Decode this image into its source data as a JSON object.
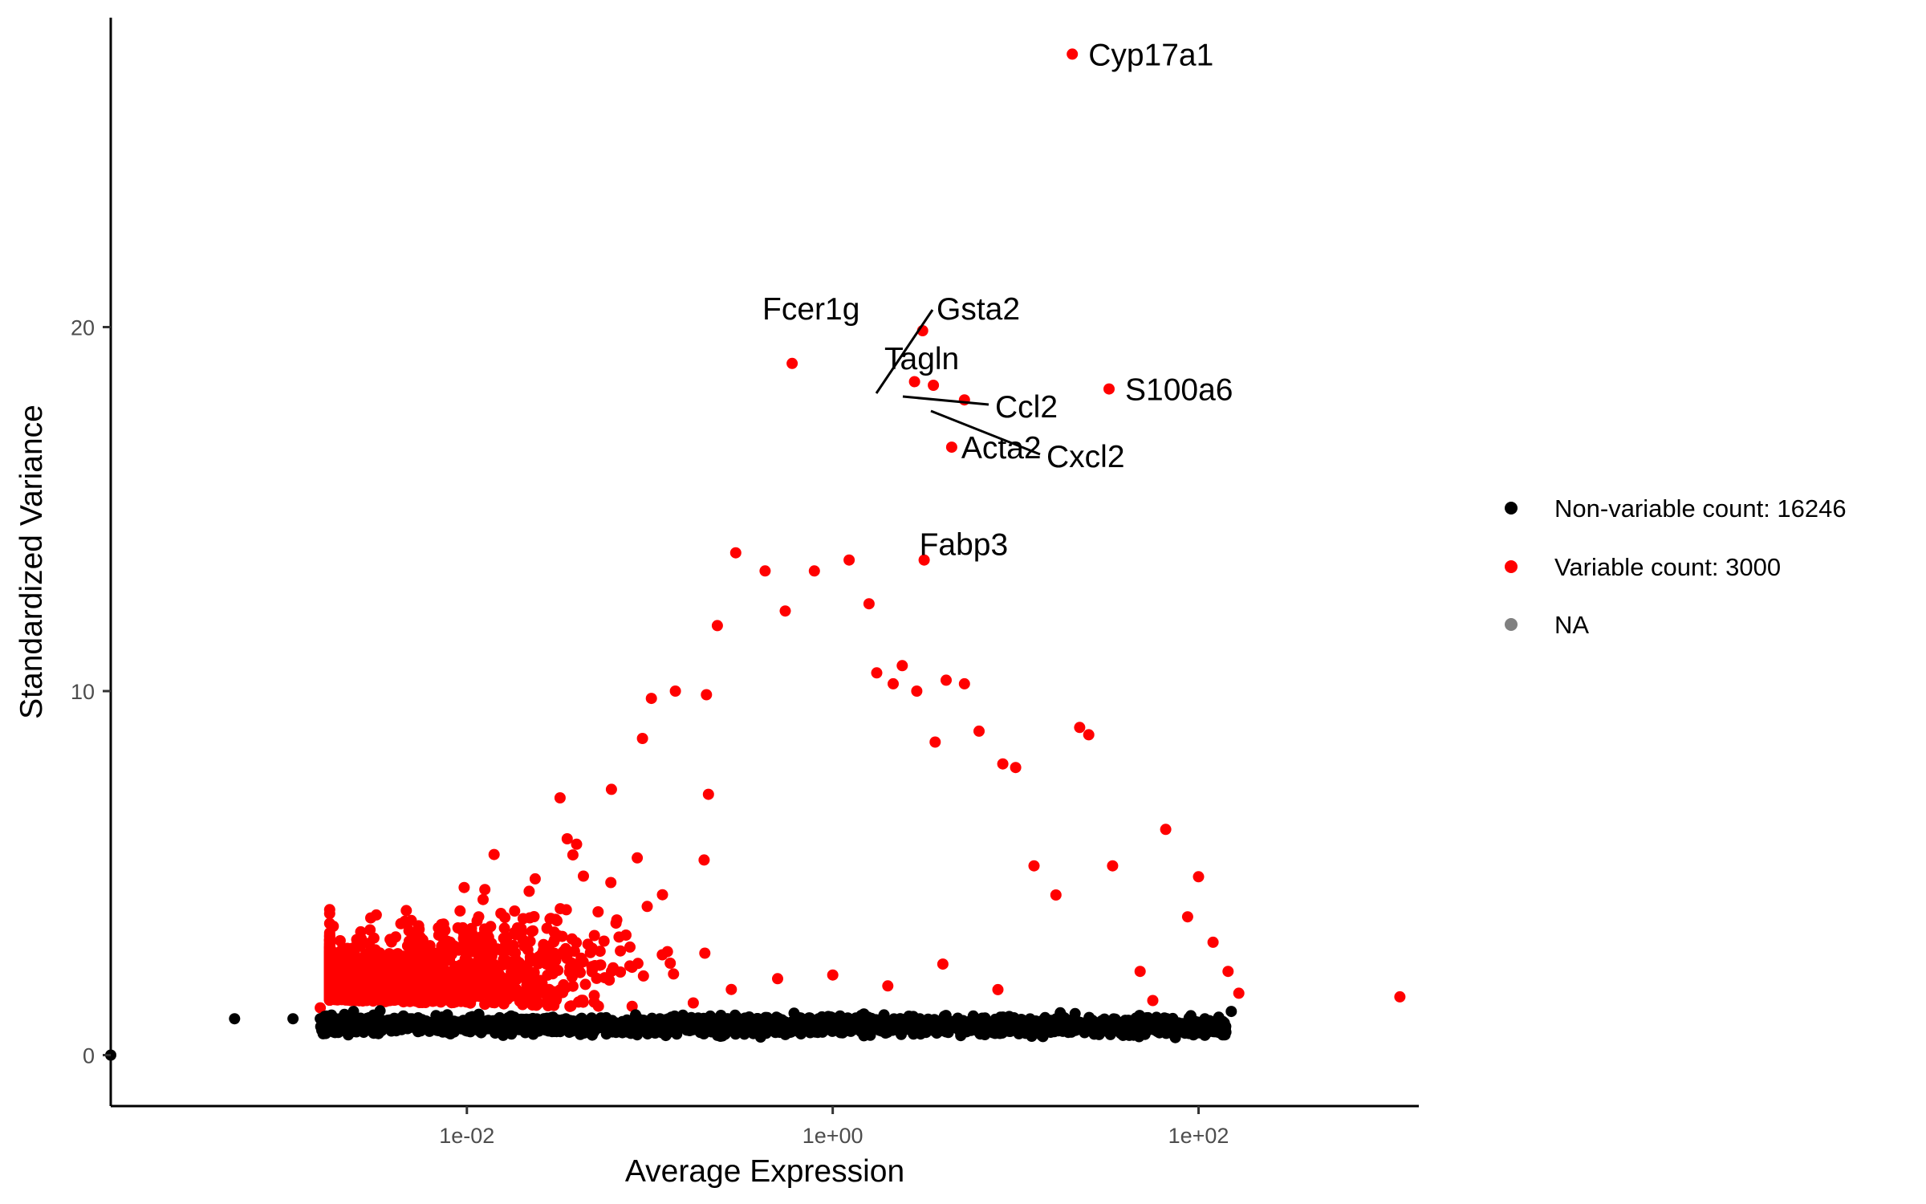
{
  "chart_data": {
    "type": "scatter",
    "title": "",
    "xlabel": "Average Expression",
    "ylabel": "Standardized Variance",
    "xscale": "log10",
    "xlim": [
      0.000113,
      1600
    ],
    "ylim": [
      -1.4,
      28.5
    ],
    "xticks": [
      {
        "value": 0.01,
        "label": "1e-02"
      },
      {
        "value": 1,
        "label": "1e+00"
      },
      {
        "value": 100,
        "label": "1e+02"
      }
    ],
    "yticks": [
      {
        "value": 0,
        "label": "0"
      },
      {
        "value": 10,
        "label": "10"
      },
      {
        "value": 20,
        "label": "20"
      }
    ],
    "grid": false,
    "legend_position": "right",
    "series": [
      {
        "name": "Non-variable count: 16246",
        "color": "#000000",
        "count": 16246,
        "representative_points": [
          [
            0.000113,
            0.0
          ],
          [
            0.000537,
            1.0
          ],
          [
            0.00112,
            1.0
          ],
          [
            0.00158,
            1.0
          ],
          [
            0.00182,
            1.1
          ],
          [
            0.00191,
            0.95
          ],
          [
            0.0024,
            1.2
          ],
          [
            0.00309,
            1.1
          ],
          [
            0.005,
            1.0
          ],
          [
            0.0089,
            0.9
          ],
          [
            0.0151,
            0.85
          ],
          [
            0.0269,
            0.95
          ],
          [
            0.0427,
            0.85
          ],
          [
            0.0741,
            0.9
          ],
          [
            0.135,
            0.85
          ],
          [
            0.257,
            0.9
          ],
          [
            0.468,
            0.95
          ],
          [
            0.832,
            0.85
          ],
          [
            1.62,
            0.8
          ],
          [
            2.88,
            0.9
          ],
          [
            5.5,
            0.75
          ],
          [
            9.33,
            0.65
          ],
          [
            15.8,
            0.7
          ],
          [
            27.5,
            0.6
          ],
          [
            47.9,
            0.85
          ],
          [
            70.8,
            0.7
          ],
          [
            112,
            0.8
          ],
          [
            135,
            0.7
          ],
          [
            151,
            1.2
          ]
        ]
      },
      {
        "name": "Variable count: 3000",
        "color": "#ff0000",
        "count": 3000,
        "representative_points": [
          [
            0.00158,
            1.3
          ],
          [
            0.0024,
            1.8
          ],
          [
            0.0038,
            1.5
          ],
          [
            0.005,
            2.2
          ],
          [
            0.0085,
            3.0
          ],
          [
            0.0126,
            3.2
          ],
          [
            0.0219,
            4.5
          ],
          [
            0.038,
            5.5
          ],
          [
            0.0617,
            7.3
          ],
          [
            0.0912,
            8.7
          ],
          [
            0.102,
            9.8
          ],
          [
            0.138,
            10.0
          ],
          [
            0.204,
            9.9
          ],
          [
            0.234,
            11.8
          ],
          [
            0.295,
            13.8
          ],
          [
            0.427,
            13.3
          ],
          [
            0.55,
            12.2
          ],
          [
            0.794,
            13.3
          ],
          [
            1.23,
            13.6
          ],
          [
            1.58,
            12.4
          ],
          [
            1.74,
            10.5
          ],
          [
            2.14,
            10.2
          ],
          [
            2.4,
            10.7
          ],
          [
            2.88,
            10.0
          ],
          [
            3.63,
            8.6
          ],
          [
            4.17,
            10.3
          ],
          [
            5.25,
            10.2
          ],
          [
            6.31,
            8.9
          ],
          [
            8.51,
            8.0
          ],
          [
            10.0,
            7.9
          ],
          [
            12.6,
            5.2
          ],
          [
            16.6,
            4.4
          ],
          [
            22.4,
            9.0
          ],
          [
            25.1,
            8.8
          ],
          [
            33.9,
            5.2
          ],
          [
            47.9,
            2.3
          ],
          [
            56.2,
            1.5
          ],
          [
            66.1,
            6.2
          ],
          [
            87.1,
            3.8
          ],
          [
            100,
            4.9
          ],
          [
            120,
            3.1
          ],
          [
            145,
            2.3
          ],
          [
            166,
            1.7
          ],
          [
            1260,
            1.6
          ],
          [
            0.0275,
            1.6
          ],
          [
            0.063,
            2.4
          ],
          [
            0.2,
            2.8
          ],
          [
            0.5,
            2.1
          ],
          [
            1.0,
            2.2
          ],
          [
            2.0,
            1.9
          ],
          [
            4.0,
            2.5
          ],
          [
            8.0,
            1.8
          ]
        ]
      },
      {
        "name": "NA",
        "color": "#808080",
        "count": 0,
        "representative_points": []
      }
    ],
    "labeled_genes": [
      {
        "gene": "Cyp17a1",
        "x": 20.4,
        "y": 27.5
      },
      {
        "gene": "Gsta2",
        "x": 2.8,
        "y": 18.5
      },
      {
        "gene": "Fcer1g",
        "x": 0.6,
        "y": 19.0
      },
      {
        "gene": "Tagln",
        "x": 3.1,
        "y": 19.9
      },
      {
        "gene": "Ccl2",
        "x": 3.55,
        "y": 18.4
      },
      {
        "gene": "S100a6",
        "x": 32.4,
        "y": 18.3
      },
      {
        "gene": "Cxcl2",
        "x": 5.25,
        "y": 18.0
      },
      {
        "gene": "Acta2",
        "x": 4.47,
        "y": 16.7
      },
      {
        "gene": "Fabp3",
        "x": 3.16,
        "y": 13.6
      }
    ]
  }
}
